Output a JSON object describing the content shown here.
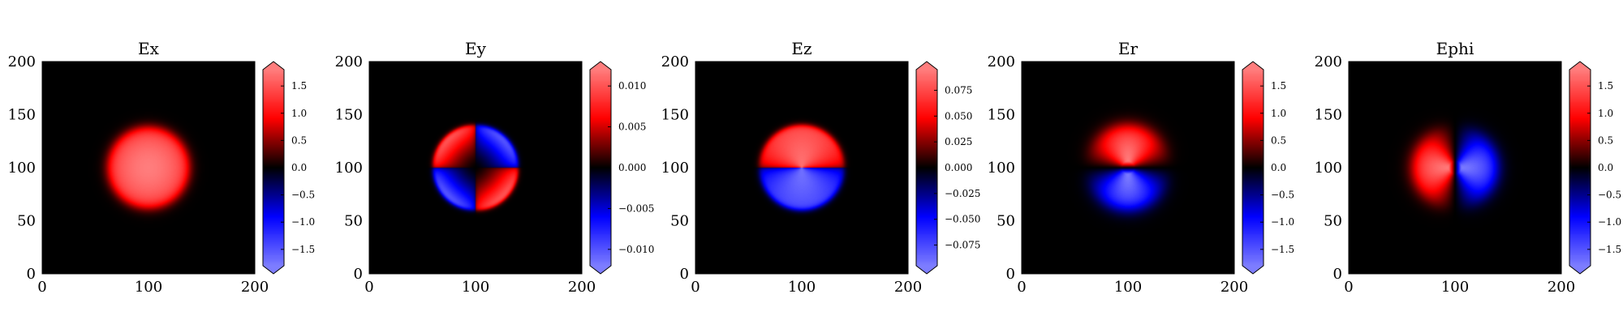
{
  "figure": {
    "layout": "1x5 panels"
  },
  "chart_data": [
    {
      "type": "heatmap",
      "title": "Ex",
      "xlim": [
        0,
        200
      ],
      "ylim": [
        0,
        200
      ],
      "xticks": [
        "0",
        "100",
        "200"
      ],
      "yticks": [
        "0",
        "50",
        "100",
        "150",
        "200"
      ],
      "colormap": "seismic-like (blue-black-red)",
      "colorbar": {
        "extend": "both",
        "vmin": -1.8,
        "vmax": 1.8,
        "ticks": [
          1.5,
          1.0,
          0.5,
          0.0,
          -0.5,
          -1.0,
          -1.5
        ],
        "tick_labels": [
          "1.5",
          "1.0",
          "0.5",
          "0.0",
          "−0.5",
          "−1.0",
          "−1.5"
        ]
      },
      "pattern": {
        "kind": "gaussian_disk",
        "cx": 100,
        "cy": 100,
        "r": 38,
        "amp": 1.8
      }
    },
    {
      "type": "heatmap",
      "title": "Ey",
      "xlim": [
        0,
        200
      ],
      "ylim": [
        0,
        200
      ],
      "xticks": [
        "0",
        "100",
        "200"
      ],
      "yticks": [
        "0",
        "50",
        "100",
        "150",
        "200"
      ],
      "colormap": "seismic-like (blue-black-red)",
      "colorbar": {
        "extend": "both",
        "vmin": -0.012,
        "vmax": 0.012,
        "ticks": [
          0.01,
          0.005,
          0.0,
          -0.005,
          -0.01
        ],
        "tick_labels": [
          "0.010",
          "0.005",
          "0.000",
          "−0.005",
          "−0.010"
        ]
      },
      "pattern": {
        "kind": "quadrupole_disk",
        "cx": 100,
        "cy": 100,
        "r": 40,
        "amp": 0.012
      }
    },
    {
      "type": "heatmap",
      "title": "Ez",
      "xlim": [
        0,
        200
      ],
      "ylim": [
        0,
        200
      ],
      "xticks": [
        "0",
        "100",
        "200"
      ],
      "yticks": [
        "0",
        "50",
        "100",
        "150",
        "200"
      ],
      "colormap": "seismic-like (blue-black-red)",
      "colorbar": {
        "extend": "both",
        "vmin": -0.095,
        "vmax": 0.095,
        "ticks": [
          0.075,
          0.05,
          0.025,
          0.0,
          -0.025,
          -0.05,
          -0.075
        ],
        "tick_labels": [
          "0.075",
          "0.050",
          "0.025",
          "0.000",
          "−0.025",
          "−0.050",
          "−0.075"
        ]
      },
      "pattern": {
        "kind": "dipole_y_disk",
        "cx": 100,
        "cy": 100,
        "r": 40,
        "amp": 0.09
      }
    },
    {
      "type": "heatmap",
      "title": "Er",
      "xlim": [
        0,
        200
      ],
      "ylim": [
        0,
        200
      ],
      "xticks": [
        "0",
        "100",
        "200"
      ],
      "yticks": [
        "0",
        "50",
        "100",
        "150",
        "200"
      ],
      "colormap": "seismic-like (blue-black-red)",
      "colorbar": {
        "extend": "both",
        "vmin": -1.8,
        "vmax": 1.8,
        "ticks": [
          1.5,
          1.0,
          0.5,
          0.0,
          -0.5,
          -1.0,
          -1.5
        ],
        "tick_labels": [
          "1.5",
          "1.0",
          "0.5",
          "0.0",
          "−0.5",
          "−1.0",
          "−1.5"
        ]
      },
      "pattern": {
        "kind": "radial_sin",
        "cx": 100,
        "cy": 100,
        "r": 40,
        "amp": 1.8
      }
    },
    {
      "type": "heatmap",
      "title": "Ephi",
      "xlim": [
        0,
        200
      ],
      "ylim": [
        0,
        200
      ],
      "xticks": [
        "0",
        "100",
        "200"
      ],
      "yticks": [
        "0",
        "50",
        "100",
        "150",
        "200"
      ],
      "colormap": "seismic-like (blue-black-red)",
      "colorbar": {
        "extend": "both",
        "vmin": -1.8,
        "vmax": 1.8,
        "ticks": [
          1.5,
          1.0,
          0.5,
          0.0,
          -0.5,
          -1.0,
          -1.5
        ],
        "tick_labels": [
          "1.5",
          "1.0",
          "0.5",
          "0.0",
          "−0.5",
          "−1.0",
          "−1.5"
        ]
      },
      "pattern": {
        "kind": "azimuthal_cos",
        "cx": 100,
        "cy": 100,
        "r": 40,
        "amp": 1.8
      }
    }
  ]
}
